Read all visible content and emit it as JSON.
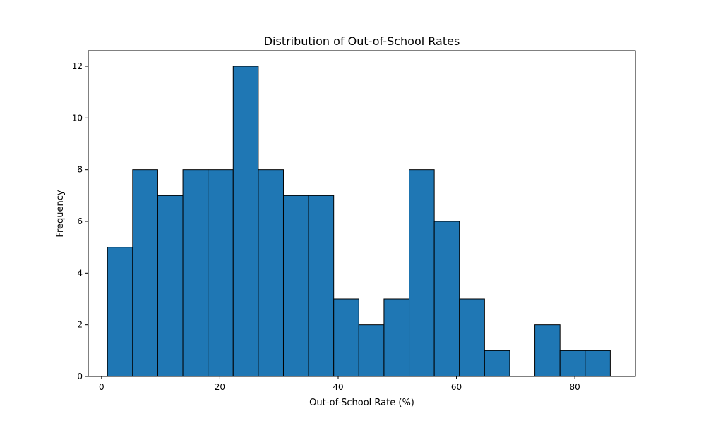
{
  "chart_data": {
    "type": "bar",
    "title": "Distribution of Out-of-School Rates",
    "xlabel": "Out-of-School Rate (%)",
    "ylabel": "Frequency",
    "bin_edges": [
      1.0,
      5.25,
      9.5,
      13.75,
      18.0,
      22.25,
      26.5,
      30.75,
      35.0,
      39.25,
      43.5,
      47.75,
      52.0,
      56.25,
      60.5,
      64.75,
      69.0,
      73.25,
      77.5,
      81.75,
      86.0
    ],
    "values": [
      5,
      8,
      7,
      8,
      8,
      12,
      8,
      7,
      7,
      3,
      2,
      3,
      8,
      6,
      3,
      1,
      0,
      2,
      1,
      1
    ],
    "xlim": [
      -2.25,
      90.25
    ],
    "ylim": [
      0,
      12.6
    ],
    "xticks": [
      0,
      20,
      40,
      60,
      80
    ],
    "yticks": [
      0,
      2,
      4,
      6,
      8,
      10,
      12
    ],
    "grid": false,
    "colors": {
      "bar_fill": "#1f77b4",
      "bar_edge": "#000000",
      "axis": "#000000"
    }
  }
}
